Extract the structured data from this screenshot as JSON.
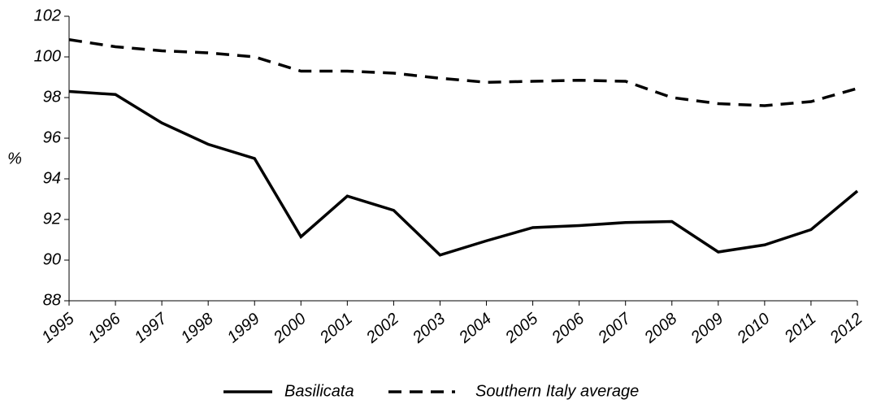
{
  "chart_data": {
    "type": "line",
    "y_label": "%",
    "categories": [
      "1995",
      "1996",
      "1997",
      "1998",
      "1999",
      "2000",
      "2001",
      "2002",
      "2003",
      "2004",
      "2005",
      "2006",
      "2007",
      "2008",
      "2009",
      "2010",
      "2011",
      "2012"
    ],
    "series": [
      {
        "name": "Basilicata",
        "color": "#000000",
        "style": "solid",
        "values": [
          98.3,
          98.15,
          96.75,
          95.7,
          95.0,
          91.15,
          93.15,
          92.45,
          90.25,
          90.95,
          91.6,
          91.7,
          91.85,
          91.9,
          90.4,
          90.75,
          91.5,
          93.4
        ]
      },
      {
        "name": "Southern Italy average",
        "color": "#000000",
        "style": "dashed",
        "values": [
          100.85,
          100.5,
          100.3,
          100.2,
          100.0,
          99.3,
          99.3,
          99.2,
          98.95,
          98.75,
          98.8,
          98.85,
          98.8,
          98.0,
          97.7,
          97.6,
          97.8,
          98.45
        ]
      }
    ],
    "ylim": [
      88,
      102
    ],
    "yticks": [
      88,
      90,
      92,
      94,
      96,
      98,
      100,
      102
    ],
    "grid": false,
    "legend": "bottom"
  }
}
